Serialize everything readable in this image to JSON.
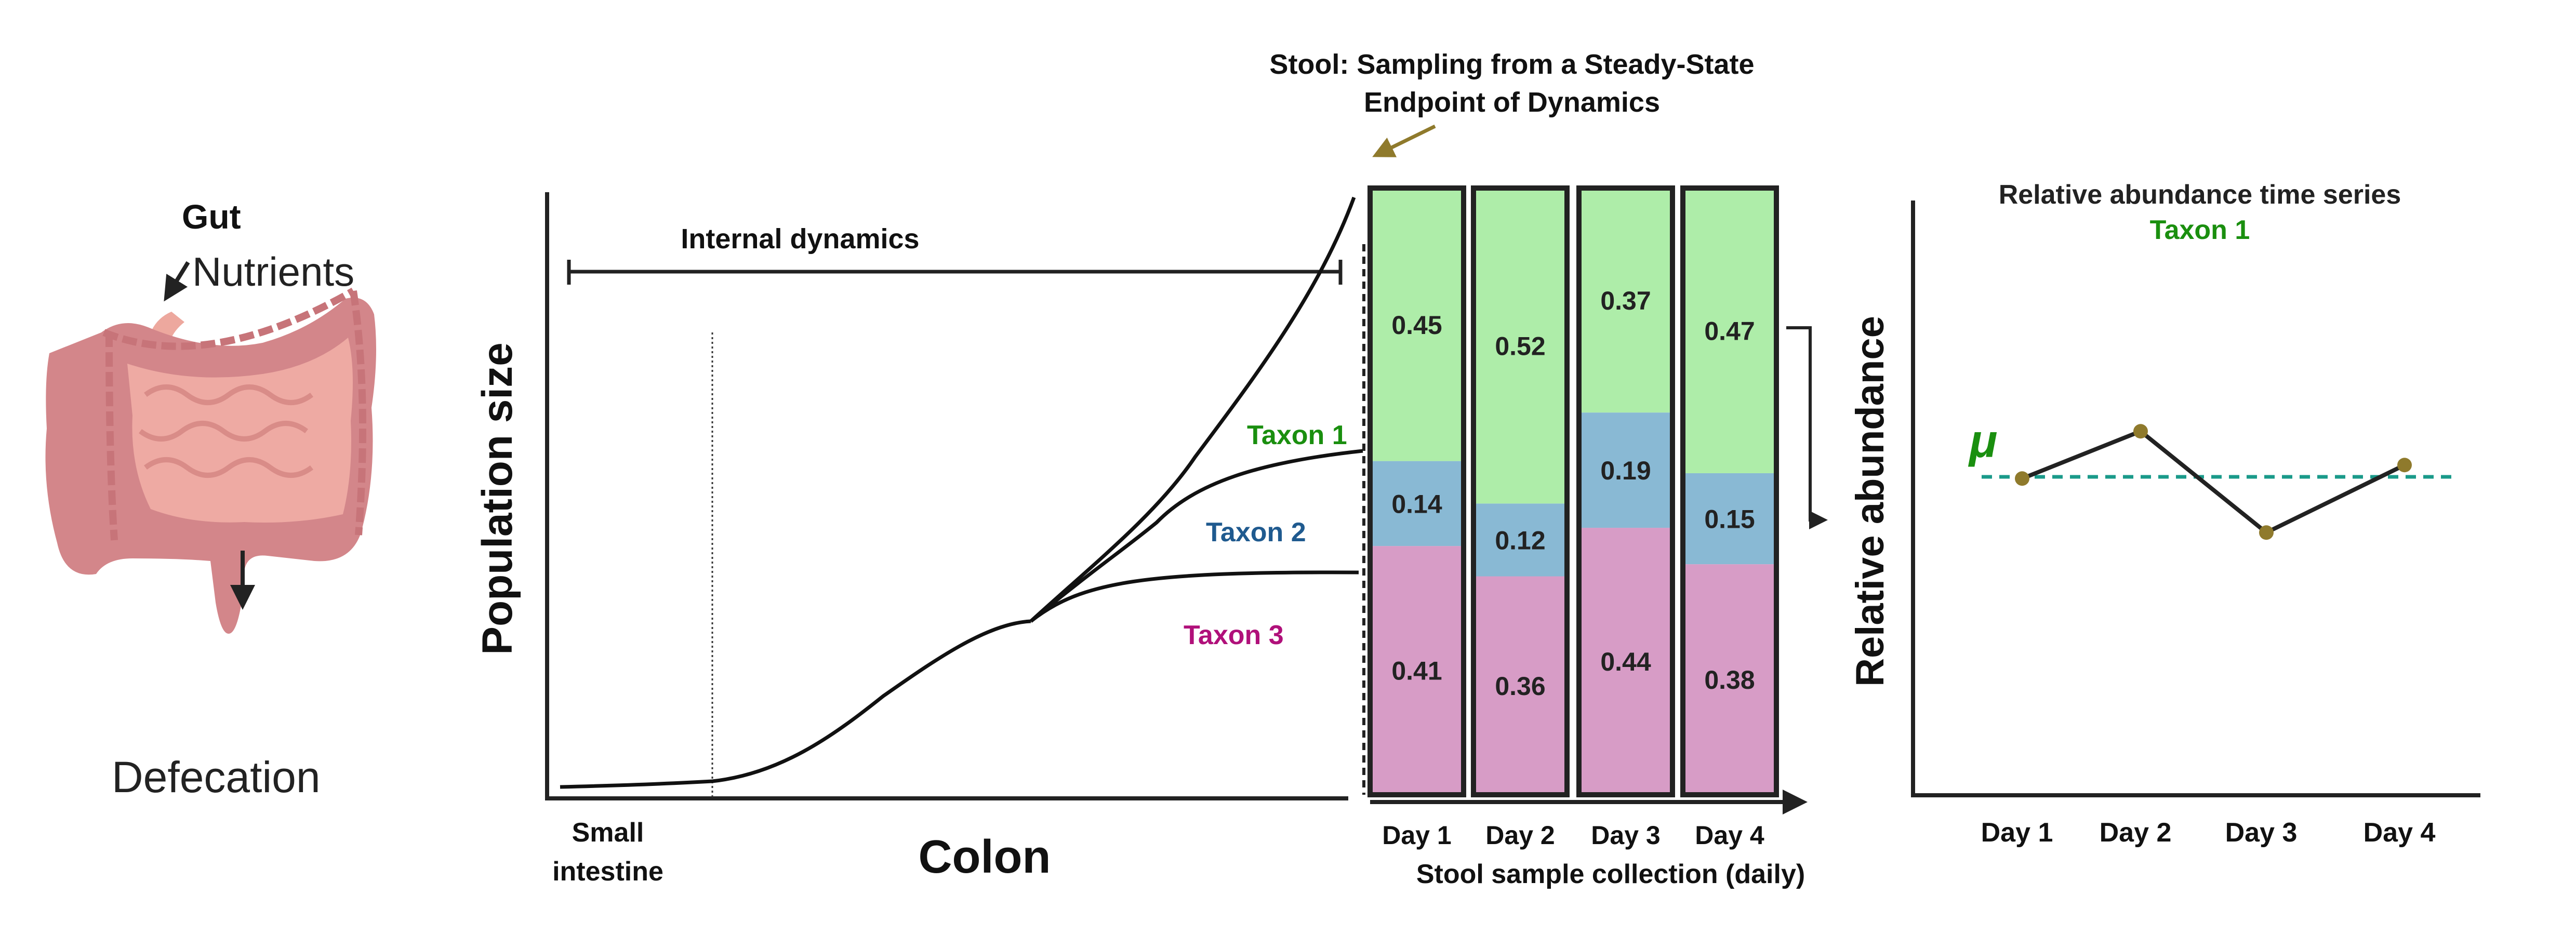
{
  "gut": {
    "title": "Gut",
    "input_label": "Nutrients",
    "output_label": "Defecation"
  },
  "left_chart": {
    "ylabel": "Population size",
    "bracket_label": "Internal dynamics",
    "x_labels": {
      "small_intestine_line1": "Small",
      "small_intestine_line2": "intestine",
      "colon": "Colon"
    },
    "taxa": [
      {
        "name": "Taxon 1",
        "color": "#1a8f0f"
      },
      {
        "name": "Taxon 2",
        "color": "#1f5a8f"
      },
      {
        "name": "Taxon 3",
        "color": "#b0107a"
      }
    ]
  },
  "stool": {
    "title_line1": "Stool: Sampling from a Steady-State",
    "title_line2": "Endpoint of Dynamics",
    "xlabel": "Stool sample collection (daily)"
  },
  "chart_data": [
    {
      "type": "bar",
      "stacked": true,
      "categories": [
        "Day 1",
        "Day 2",
        "Day 3",
        "Day 4"
      ],
      "xlabel": "Stool sample collection (daily)",
      "series": [
        {
          "key": "taxon3",
          "color": "#d79cc6",
          "values": [
            0.41,
            0.36,
            0.44,
            0.38
          ],
          "labels": [
            "0.41",
            "0.36",
            "0.44",
            "0.38"
          ]
        },
        {
          "key": "taxon2",
          "color": "#89b9d4",
          "values": [
            0.14,
            0.12,
            0.19,
            0.15
          ],
          "labels": [
            "0.14",
            "0.12",
            "0.19",
            "0.15"
          ]
        },
        {
          "key": "taxon1",
          "color": "#aeeda9",
          "values": [
            0.45,
            0.52,
            0.37,
            0.47
          ],
          "labels": [
            "0.45",
            "0.52",
            "0.37",
            "0.47"
          ]
        }
      ],
      "ylim": [
        0,
        1
      ]
    },
    {
      "type": "line",
      "title": "Relative abundance time series",
      "subtitle": "Taxon 1",
      "subtitle_color": "#1a8f0f",
      "ylabel": "Relative abundance",
      "categories": [
        "Day 1",
        "Day 2",
        "Day 3",
        "Day 4"
      ],
      "values": [
        0.45,
        0.52,
        0.37,
        0.47
      ],
      "point_color": "#8f7a2c",
      "mean_label": "μ",
      "mean_line_color": "#1a9a8a"
    }
  ]
}
